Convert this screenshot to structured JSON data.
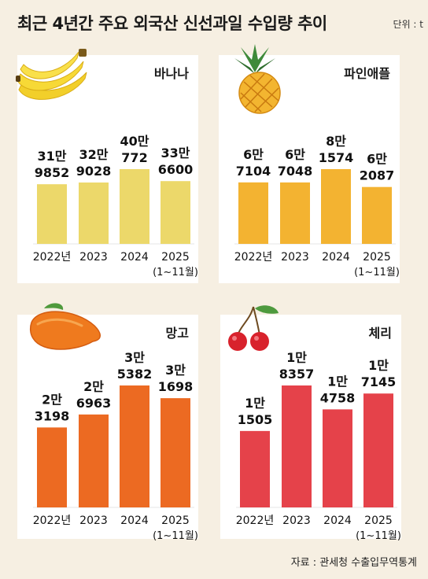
{
  "title": "최근 4년간 주요 외국산 신선과일 수입량 추이",
  "unit": "단위 : t",
  "source": "자료 : 관세청 수출입무역통계",
  "colors": {
    "background": "#f6efe2",
    "panel": "#ffffff",
    "banana": "#ecd86a",
    "pineapple": "#f3b331",
    "mango": "#ec6a22",
    "cherry": "#e5424a"
  },
  "chart_data": [
    {
      "type": "bar",
      "title": "바나나",
      "icon": "banana-icon",
      "categories": [
        "2022년",
        "2023",
        "2024",
        "2025"
      ],
      "category_notes": [
        "",
        "",
        "",
        "(1~11월)"
      ],
      "values": [
        319852,
        329028,
        400772,
        336600
      ],
      "labels": [
        [
          "31만",
          "9852"
        ],
        [
          "32만",
          "9028"
        ],
        [
          "40만",
          "772"
        ],
        [
          "33만",
          "6600"
        ]
      ],
      "color": "#ecd86a"
    },
    {
      "type": "bar",
      "title": "파인애플",
      "icon": "pineapple-icon",
      "categories": [
        "2022년",
        "2023",
        "2024",
        "2025"
      ],
      "category_notes": [
        "",
        "",
        "",
        "(1~11월)"
      ],
      "values": [
        67104,
        67048,
        81574,
        62087
      ],
      "labels": [
        [
          "6만",
          "7104"
        ],
        [
          "6만",
          "7048"
        ],
        [
          "8만",
          "1574"
        ],
        [
          "6만",
          "2087"
        ]
      ],
      "color": "#f3b331"
    },
    {
      "type": "bar",
      "title": "망고",
      "icon": "mango-icon",
      "categories": [
        "2022년",
        "2023",
        "2024",
        "2025"
      ],
      "category_notes": [
        "",
        "",
        "",
        "(1~11월)"
      ],
      "values": [
        23198,
        26963,
        35382,
        31698
      ],
      "labels": [
        [
          "2만",
          "3198"
        ],
        [
          "2만",
          "6963"
        ],
        [
          "3만",
          "5382"
        ],
        [
          "3만",
          "1698"
        ]
      ],
      "color": "#ec6a22"
    },
    {
      "type": "bar",
      "title": "체리",
      "icon": "cherry-icon",
      "categories": [
        "2022년",
        "2023",
        "2024",
        "2025"
      ],
      "category_notes": [
        "",
        "",
        "",
        "(1~11월)"
      ],
      "values": [
        11505,
        18357,
        14758,
        17145
      ],
      "labels": [
        [
          "1만",
          "1505"
        ],
        [
          "1만",
          "8357"
        ],
        [
          "1만",
          "4758"
        ],
        [
          "1만",
          "7145"
        ]
      ],
      "color": "#e5424a"
    }
  ]
}
